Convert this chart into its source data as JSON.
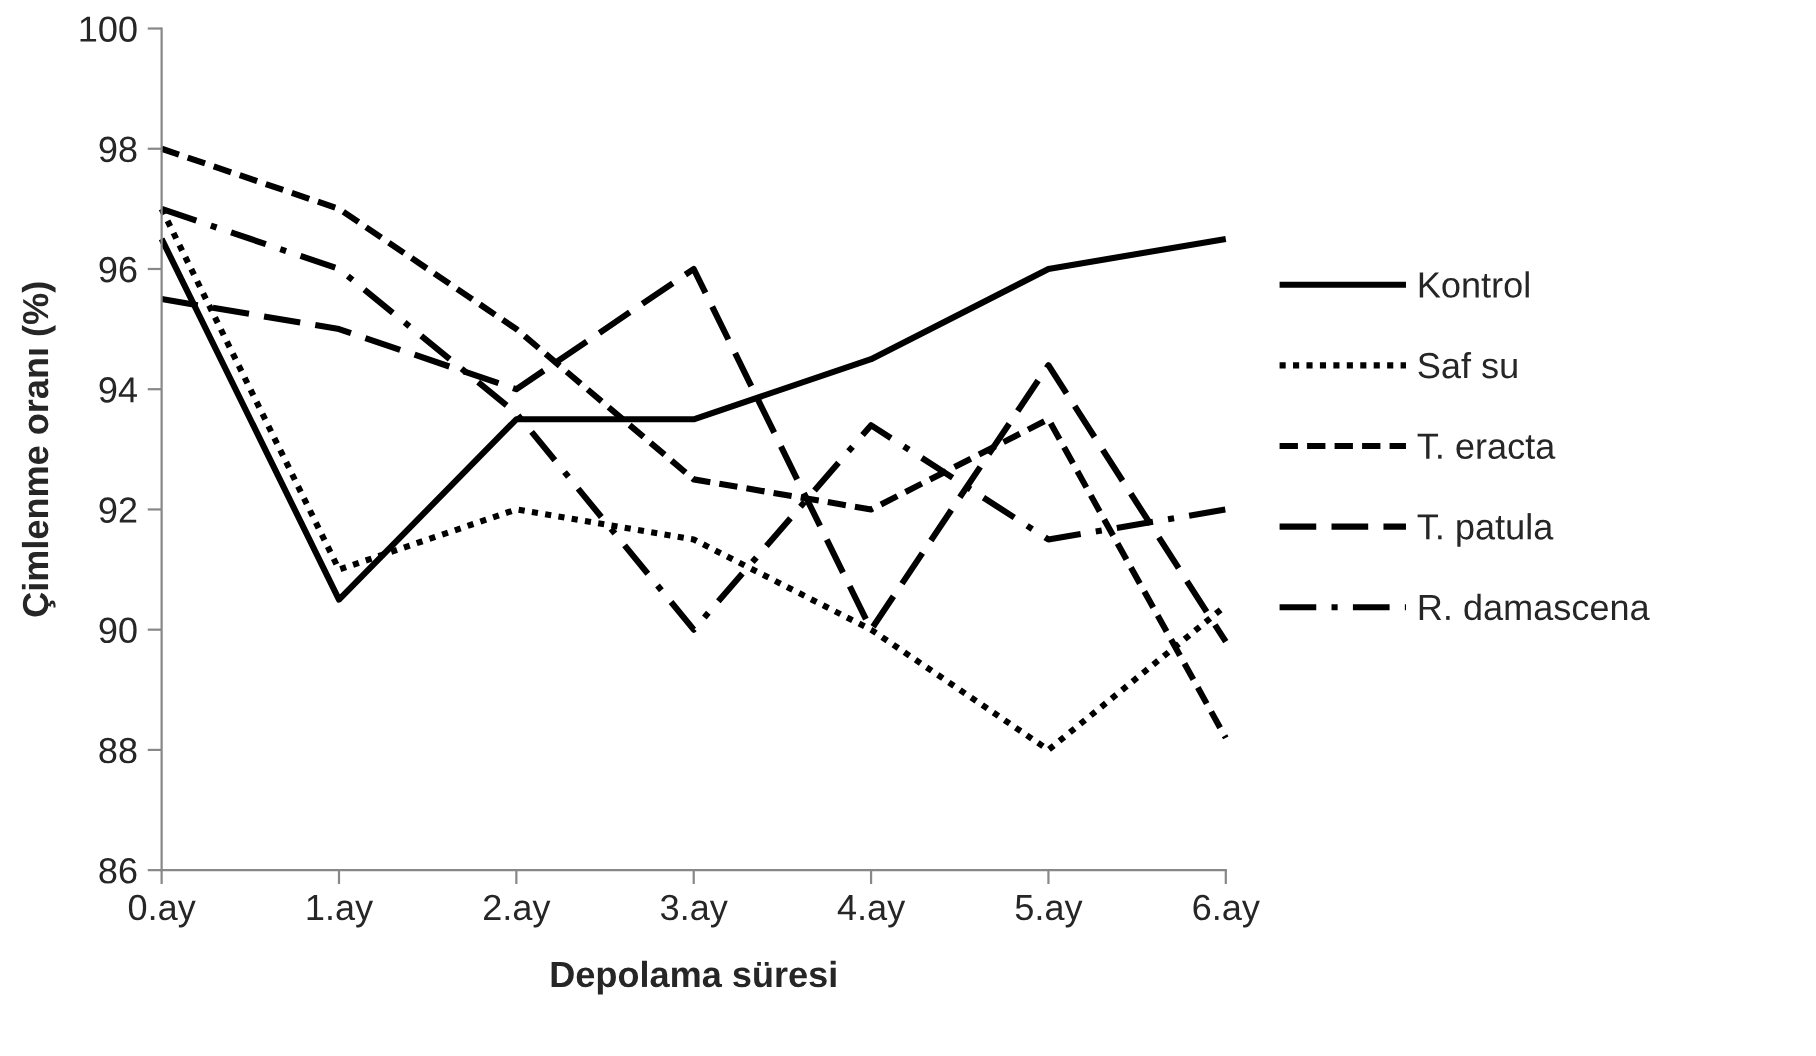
{
  "chart_data": {
    "type": "line",
    "xlabel": "Depolama süresi",
    "ylabel": "Çimlenme oranı (%)",
    "categories": [
      "0.ay",
      "1.ay",
      "2.ay",
      "3.ay",
      "4.ay",
      "5.ay",
      "6.ay"
    ],
    "ylim": [
      86,
      100
    ],
    "yticks": [
      86,
      88,
      90,
      92,
      94,
      96,
      98,
      100
    ],
    "grid": false,
    "legend": "right",
    "marker": "none",
    "series": [
      {
        "name": "Kontrol",
        "color": "#000000",
        "line_style": "solid",
        "values": [
          96.5,
          90.5,
          93.5,
          93.5,
          94.5,
          96,
          96.5
        ]
      },
      {
        "name": "Saf su",
        "color": "#000000",
        "line_style": "dotted",
        "values": [
          97,
          91,
          92,
          91.5,
          90,
          88,
          90.4
        ]
      },
      {
        "name": "T. eracta",
        "color": "#000000",
        "line_style": "dashed",
        "values": [
          98,
          97,
          95,
          92.5,
          92,
          93.5,
          88.2
        ]
      },
      {
        "name": "T. patula",
        "color": "#000000",
        "line_style": "longdash",
        "values": [
          95.5,
          95,
          94,
          96,
          90,
          94.4,
          89.8
        ]
      },
      {
        "name": "R. damascena",
        "color": "#000000",
        "line_style": "dashdot",
        "values": [
          97,
          96,
          93.6,
          90,
          93.4,
          91.5,
          92
        ]
      }
    ]
  }
}
